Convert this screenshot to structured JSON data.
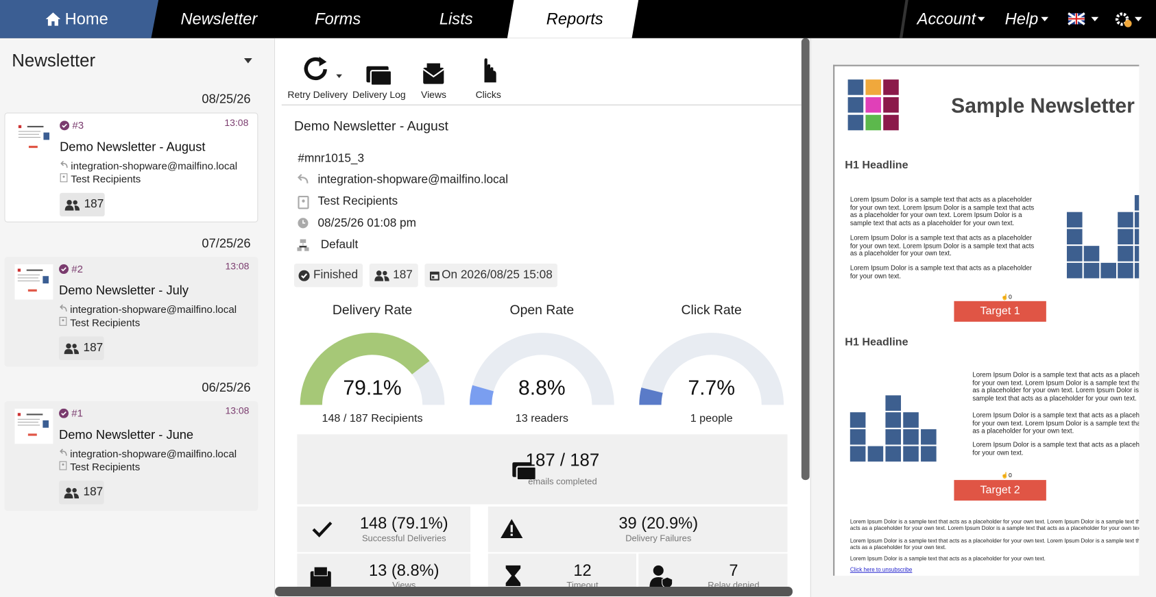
{
  "nav": {
    "items": [
      "Home",
      "Newsletter",
      "Forms",
      "Lists",
      "Reports"
    ],
    "right": [
      "Account",
      "Help"
    ]
  },
  "sidebar": {
    "title": "Newsletter",
    "groups": [
      {
        "date": "08/25/26",
        "card": {
          "number": "#3",
          "time": "13:08",
          "title": "Demo Newsletter - August",
          "sender": "integration-shopware@mailfino.local",
          "recipients": "Test Recipients",
          "count": "187"
        }
      },
      {
        "date": "07/25/26",
        "card": {
          "number": "#2",
          "time": "13:08",
          "title": "Demo Newsletter - July",
          "sender": "integration-shopware@mailfino.local",
          "recipients": "Test Recipients",
          "count": "187"
        }
      },
      {
        "date": "06/25/26",
        "card": {
          "number": "#1",
          "time": "13:08",
          "title": "Demo Newsletter - June",
          "sender": "integration-shopware@mailfino.local",
          "recipients": "Test Recipients",
          "count": "187"
        }
      }
    ]
  },
  "toolbar": [
    "Retry Delivery",
    "Delivery Log",
    "Views",
    "Clicks"
  ],
  "detail": {
    "title": "Demo Newsletter - August",
    "id": "#mnr1015_3",
    "sender": "integration-shopware@mailfino.local",
    "recipients": "Test Recipients",
    "datetime": "08/25/26 01:08 pm",
    "server": "Default",
    "badges": [
      "Finished",
      "187",
      "On 2026/08/25 15:08"
    ]
  },
  "gauges": [
    {
      "title": "Delivery Rate",
      "value": 79.1,
      "value_label": "79.1%",
      "caption": "148 / 187 Recipients",
      "color": "#a6c877"
    },
    {
      "title": "Open Rate",
      "value": 8.8,
      "value_label": "8.8%",
      "caption": "13 readers",
      "color": "#7a9ef0"
    },
    {
      "title": "Click Rate",
      "value": 7.7,
      "value_label": "7.7%",
      "caption": "1 people",
      "color": "#5a7bc8"
    }
  ],
  "stats": {
    "total": {
      "value": "187 / 187",
      "label": "emails completed"
    },
    "rows": [
      [
        {
          "value": "148 (79.1%)",
          "label": "Successful Deliveries"
        },
        {
          "value": "39 (20.9%)",
          "label": "Delivery Failures"
        }
      ],
      [
        {
          "value": "13 (8.8%)",
          "label": "Views"
        },
        {
          "value": "12",
          "label": "Timeout"
        },
        {
          "value": "7",
          "label": "Relay denied"
        }
      ]
    ]
  },
  "preview": {
    "title": "Sample Newsletter",
    "sections": [
      {
        "headline": "H1 Headline",
        "paragraphs": [
          "Lorem Ipsum Dolor is a sample text that acts as a placeholder for your own text. Lorem Ipsum Dolor is a sample text that acts as a placeholder for your own text. Lorem Ipsum Dolor is a sample text that acts as a placeholder for your own text.",
          "Lorem Ipsum Dolor is a sample text that acts as a placeholder for your own text. Lorem Ipsum Dolor is a sample text that acts as a placeholder for your own text.",
          "Lorem Ipsum Dolor is a sample text that acts as a placeholder for your own text."
        ],
        "clicks": "0",
        "button": "Target 1"
      },
      {
        "headline": "H1 Headline",
        "paragraphs": [
          "Lorem Ipsum Dolor is a sample text that acts as a placeholder for your own text. Lorem Ipsum Dolor is a sample text that acts as a placeholder for your own text. Lorem Ipsum Dolor is a sample text that acts as a placeholder for your own text.",
          "Lorem Ipsum Dolor is a sample text that acts as a placeholder for your own text. Lorem Ipsum Dolor is a sample text that acts as a placeholder for your own text.",
          "Lorem Ipsum Dolor is a sample text that acts as a placeholder for your own text."
        ],
        "clicks": "0",
        "button": "Target 2"
      }
    ],
    "footer": [
      "Lorem Ipsum Dolor is a sample text that acts as a placeholder for your own text. Lorem Ipsum Dolor is a sample text that acts as a placeholder for your own text. Lorem Ipsum Dolor is a sample text that acts as a placeholder for your own text.",
      "Lorem Ipsum Dolor is a sample text that acts as a placeholder for your own text. Lorem Ipsum Dolor is a sample text that acts as a placeholder for your own text.",
      "Lorem Ipsum Dolor is a sample text that acts as a placeholder for your own text."
    ],
    "unsubscribe": "Click here to unsubscribe"
  }
}
